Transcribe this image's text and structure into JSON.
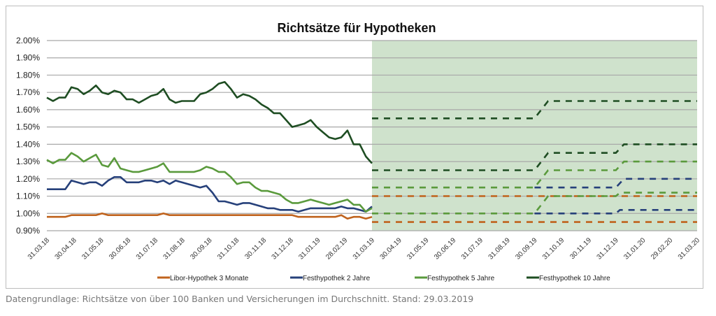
{
  "caption": "Datengrundlage: Richtsätze von über 100 Banken und Versicherungen im Durchschnitt. Stand: 29.03.2019",
  "chart_data": {
    "type": "line",
    "title": "Richtsätze für Hypotheken",
    "xlabel": "",
    "ylabel": "",
    "ylim": [
      0.9,
      2.0
    ],
    "yticks": [
      "0.90%",
      "1.00%",
      "1.10%",
      "1.20%",
      "1.30%",
      "1.40%",
      "1.50%",
      "1.60%",
      "1.70%",
      "1.80%",
      "1.90%",
      "2.00%"
    ],
    "xticks": [
      "31.03.18",
      "30.04.18",
      "31.05.18",
      "30.06.18",
      "31.07.18",
      "31.08.18",
      "30.09.18",
      "31.10.18",
      "30.11.18",
      "31.12.18",
      "31.01.19",
      "28.02.19",
      "31.03.19",
      "30.04.19",
      "31.05.19",
      "30.06.19",
      "31.07.19",
      "31.08.19",
      "30.09.19",
      "31.10.19",
      "30.11.19",
      "31.12.19",
      "31.01.20",
      "29.02.20",
      "31.03.20"
    ],
    "grid": true,
    "legend": "bottom",
    "forecast_region": {
      "from_month": 12,
      "to_month": 24,
      "color": "#cfe2cc"
    },
    "series": [
      {
        "name": "Libor-Hypothek 3 Monate",
        "color": "#c0631d",
        "values": [
          0.98,
          0.98,
          0.98,
          0.98,
          0.99,
          0.99,
          0.99,
          0.99,
          0.99,
          1.0,
          0.99,
          0.99,
          0.99,
          0.99,
          0.99,
          0.99,
          0.99,
          0.99,
          0.99,
          1.0,
          0.99,
          0.99,
          0.99,
          0.99,
          0.99,
          0.99,
          0.99,
          0.99,
          0.99,
          0.99,
          0.99,
          0.99,
          0.99,
          0.99,
          0.99,
          0.99,
          0.99,
          0.99,
          0.99,
          0.99,
          0.99,
          0.98,
          0.98,
          0.98,
          0.98,
          0.98,
          0.98,
          0.98,
          0.99,
          0.97,
          0.98,
          0.98,
          0.97,
          0.98
        ],
        "forecast": [
          [
            [
              12,
              0.95
            ],
            [
              24,
              0.95
            ]
          ],
          [
            [
              12,
              1.1
            ],
            [
              24,
              1.1
            ]
          ]
        ]
      },
      {
        "name": "Festhypothek 2 Jahre",
        "color": "#26407a",
        "values": [
          1.14,
          1.14,
          1.14,
          1.14,
          1.19,
          1.18,
          1.17,
          1.18,
          1.18,
          1.16,
          1.19,
          1.21,
          1.21,
          1.18,
          1.18,
          1.18,
          1.19,
          1.19,
          1.18,
          1.19,
          1.17,
          1.19,
          1.18,
          1.17,
          1.16,
          1.15,
          1.16,
          1.12,
          1.07,
          1.07,
          1.06,
          1.05,
          1.06,
          1.06,
          1.05,
          1.04,
          1.03,
          1.03,
          1.02,
          1.02,
          1.02,
          1.01,
          1.02,
          1.03,
          1.03,
          1.03,
          1.03,
          1.03,
          1.04,
          1.03,
          1.03,
          1.02,
          1.01,
          1.04
        ],
        "forecast": [
          [
            [
              18,
              1.0
            ],
            [
              21,
              1.0
            ],
            [
              21.15,
              1.02
            ],
            [
              24,
              1.02
            ]
          ],
          [
            [
              18,
              1.15
            ],
            [
              21,
              1.15
            ],
            [
              21.3,
              1.2
            ],
            [
              24,
              1.2
            ]
          ]
        ]
      },
      {
        "name": "Festhypothek 5 Jahre",
        "color": "#5a9a3c",
        "values": [
          1.31,
          1.29,
          1.31,
          1.31,
          1.35,
          1.33,
          1.3,
          1.32,
          1.34,
          1.28,
          1.27,
          1.32,
          1.26,
          1.25,
          1.24,
          1.24,
          1.25,
          1.26,
          1.27,
          1.29,
          1.24,
          1.24,
          1.24,
          1.24,
          1.24,
          1.25,
          1.27,
          1.26,
          1.24,
          1.24,
          1.21,
          1.17,
          1.18,
          1.18,
          1.15,
          1.13,
          1.13,
          1.12,
          1.11,
          1.08,
          1.06,
          1.06,
          1.07,
          1.08,
          1.07,
          1.06,
          1.05,
          1.06,
          1.07,
          1.08,
          1.05,
          1.05,
          1.01,
          1.03
        ],
        "forecast": [
          [
            [
              12,
              1.0
            ],
            [
              18,
              1.0
            ],
            [
              18.5,
              1.1
            ],
            [
              21,
              1.1
            ],
            [
              21.15,
              1.12
            ],
            [
              24,
              1.12
            ]
          ],
          [
            [
              12,
              1.15
            ],
            [
              18,
              1.15
            ],
            [
              18.5,
              1.25
            ],
            [
              21,
              1.25
            ],
            [
              21.3,
              1.3
            ],
            [
              24,
              1.3
            ]
          ]
        ]
      },
      {
        "name": "Festhypothek 10 Jahre",
        "color": "#1e4d22",
        "values": [
          1.67,
          1.65,
          1.67,
          1.67,
          1.73,
          1.72,
          1.69,
          1.71,
          1.74,
          1.7,
          1.69,
          1.71,
          1.7,
          1.66,
          1.66,
          1.64,
          1.66,
          1.68,
          1.69,
          1.72,
          1.66,
          1.64,
          1.65,
          1.65,
          1.65,
          1.69,
          1.7,
          1.72,
          1.75,
          1.76,
          1.72,
          1.67,
          1.69,
          1.68,
          1.66,
          1.63,
          1.61,
          1.58,
          1.58,
          1.54,
          1.5,
          1.51,
          1.52,
          1.54,
          1.5,
          1.47,
          1.44,
          1.43,
          1.44,
          1.48,
          1.4,
          1.4,
          1.33,
          1.29
        ],
        "forecast": [
          [
            [
              12,
              1.25
            ],
            [
              18,
              1.25
            ],
            [
              18.5,
              1.35
            ],
            [
              21,
              1.35
            ],
            [
              21.3,
              1.4
            ],
            [
              24,
              1.4
            ]
          ],
          [
            [
              12,
              1.55
            ],
            [
              18,
              1.55
            ],
            [
              18.5,
              1.65
            ],
            [
              24,
              1.65
            ]
          ]
        ]
      }
    ]
  }
}
